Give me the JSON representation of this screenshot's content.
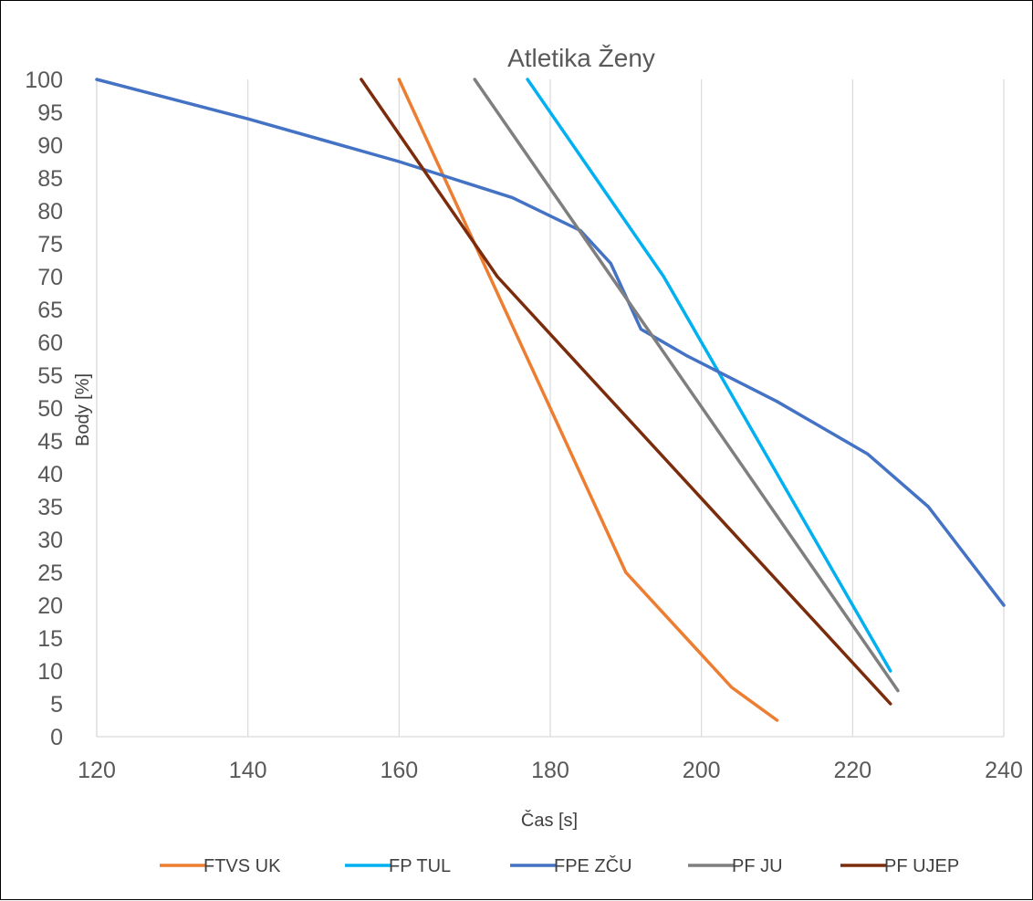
{
  "chart_data": {
    "type": "line",
    "title": "Atletika Ženy",
    "xlabel": "Čas [s]",
    "ylabel": "Body [%]",
    "xlim": [
      120,
      240
    ],
    "ylim": [
      0,
      100
    ],
    "x_ticks": [
      "120",
      "140",
      "160",
      "180",
      "200",
      "220",
      "240"
    ],
    "y_ticks": [
      "0",
      "5",
      "10",
      "15",
      "20",
      "25",
      "30",
      "35",
      "40",
      "45",
      "50",
      "55",
      "60",
      "65",
      "70",
      "75",
      "80",
      "85",
      "90",
      "95",
      "100"
    ],
    "grid": "vertical",
    "legend_position": "bottom",
    "series": [
      {
        "name": "FTVS UK",
        "color": "#ED7D31",
        "points": [
          [
            160,
            100
          ],
          [
            190,
            25
          ],
          [
            204,
            7.5
          ],
          [
            210,
            2.5
          ]
        ]
      },
      {
        "name": "FP TUL",
        "color": "#00B0F0",
        "points": [
          [
            177,
            100
          ],
          [
            195,
            70
          ],
          [
            225,
            10
          ]
        ]
      },
      {
        "name": "FPE ZČU",
        "color": "#4472C4",
        "points": [
          [
            120,
            100
          ],
          [
            140,
            94
          ],
          [
            160,
            87.5
          ],
          [
            175,
            82
          ],
          [
            184,
            77
          ],
          [
            188,
            72
          ],
          [
            192,
            62
          ],
          [
            198,
            58
          ],
          [
            210,
            51
          ],
          [
            222,
            43
          ],
          [
            230,
            35
          ],
          [
            240,
            20
          ]
        ]
      },
      {
        "name": "PF JU",
        "color": "#7F7F7F",
        "points": [
          [
            170,
            100
          ],
          [
            226,
            7
          ]
        ]
      },
      {
        "name": "PF UJEP",
        "color": "#7B2C0C",
        "points": [
          [
            155,
            100
          ],
          [
            173,
            70
          ],
          [
            225,
            5
          ]
        ]
      }
    ]
  }
}
